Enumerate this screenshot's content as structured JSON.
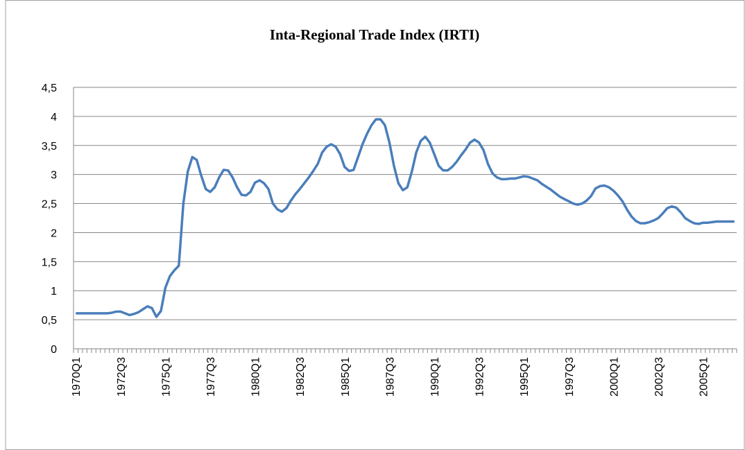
{
  "chart_data": {
    "type": "line",
    "title": "Inta-Regional Trade Index (IRTI)",
    "categories": [
      "1970Q1",
      null,
      null,
      null,
      null,
      null,
      null,
      null,
      null,
      null,
      "1972Q3",
      null,
      null,
      null,
      null,
      null,
      null,
      null,
      null,
      null,
      "1975Q1",
      null,
      null,
      null,
      null,
      null,
      null,
      null,
      null,
      null,
      "1977Q3",
      null,
      null,
      null,
      null,
      null,
      null,
      null,
      null,
      null,
      "1980Q1",
      null,
      null,
      null,
      null,
      null,
      null,
      null,
      null,
      null,
      "1982Q3",
      null,
      null,
      null,
      null,
      null,
      null,
      null,
      null,
      null,
      "1985Q1",
      null,
      null,
      null,
      null,
      null,
      null,
      null,
      null,
      null,
      "1987Q3",
      null,
      null,
      null,
      null,
      null,
      null,
      null,
      null,
      null,
      "1990Q1",
      null,
      null,
      null,
      null,
      null,
      null,
      null,
      null,
      null,
      "1992Q3",
      null,
      null,
      null,
      null,
      null,
      null,
      null,
      null,
      null,
      "1995Q1",
      null,
      null,
      null,
      null,
      null,
      null,
      null,
      null,
      null,
      "1997Q3",
      null,
      null,
      null,
      null,
      null,
      null,
      null,
      null,
      null,
      "2000Q1",
      null,
      null,
      null,
      null,
      null,
      null,
      null,
      null,
      null,
      "2002Q3",
      null,
      null,
      null,
      null,
      null,
      null,
      null,
      null,
      null,
      "2005Q1",
      null,
      null,
      null,
      null,
      null,
      null,
      null
    ],
    "values": [
      0.61,
      0.61,
      0.61,
      0.61,
      0.61,
      0.61,
      0.61,
      0.61,
      0.62,
      0.64,
      0.64,
      0.61,
      0.58,
      0.6,
      0.63,
      0.68,
      0.73,
      0.7,
      0.55,
      0.65,
      1.05,
      1.25,
      1.35,
      1.43,
      2.5,
      3.05,
      3.3,
      3.25,
      2.98,
      2.75,
      2.7,
      2.78,
      2.95,
      3.08,
      3.07,
      2.95,
      2.78,
      2.65,
      2.64,
      2.7,
      2.86,
      2.9,
      2.85,
      2.75,
      2.5,
      2.4,
      2.36,
      2.42,
      2.55,
      2.66,
      2.75,
      2.85,
      2.95,
      3.06,
      3.18,
      3.38,
      3.48,
      3.52,
      3.48,
      3.35,
      3.13,
      3.06,
      3.08,
      3.3,
      3.52,
      3.7,
      3.85,
      3.95,
      3.95,
      3.85,
      3.55,
      3.15,
      2.85,
      2.73,
      2.78,
      3.05,
      3.38,
      3.58,
      3.65,
      3.55,
      3.35,
      3.15,
      3.07,
      3.07,
      3.13,
      3.22,
      3.33,
      3.43,
      3.55,
      3.6,
      3.55,
      3.42,
      3.18,
      3.02,
      2.95,
      2.92,
      2.92,
      2.93,
      2.93,
      2.95,
      2.97,
      2.96,
      2.93,
      2.9,
      2.84,
      2.79,
      2.74,
      2.68,
      2.62,
      2.58,
      2.54,
      2.5,
      2.48,
      2.5,
      2.55,
      2.63,
      2.76,
      2.8,
      2.81,
      2.78,
      2.72,
      2.64,
      2.54,
      2.4,
      2.28,
      2.2,
      2.16,
      2.16,
      2.18,
      2.21,
      2.25,
      2.33,
      2.42,
      2.45,
      2.43,
      2.35,
      2.25,
      2.2,
      2.16,
      2.15,
      2.17,
      2.17,
      2.18,
      2.19,
      2.19,
      2.19,
      2.19,
      2.19
    ],
    "color": "#4a7ebb",
    "ylim": [
      0,
      4.5
    ],
    "yticks": [
      0,
      {
        "value": 0.5,
        "label": "0,5"
      },
      1,
      {
        "value": 1.5,
        "label": "1,5"
      },
      2,
      {
        "value": 2.5,
        "label": "2,5"
      },
      3,
      {
        "value": 3.5,
        "label": "3,5"
      },
      4,
      {
        "value": 4.5,
        "label": "4,5"
      }
    ],
    "grid": true
  }
}
